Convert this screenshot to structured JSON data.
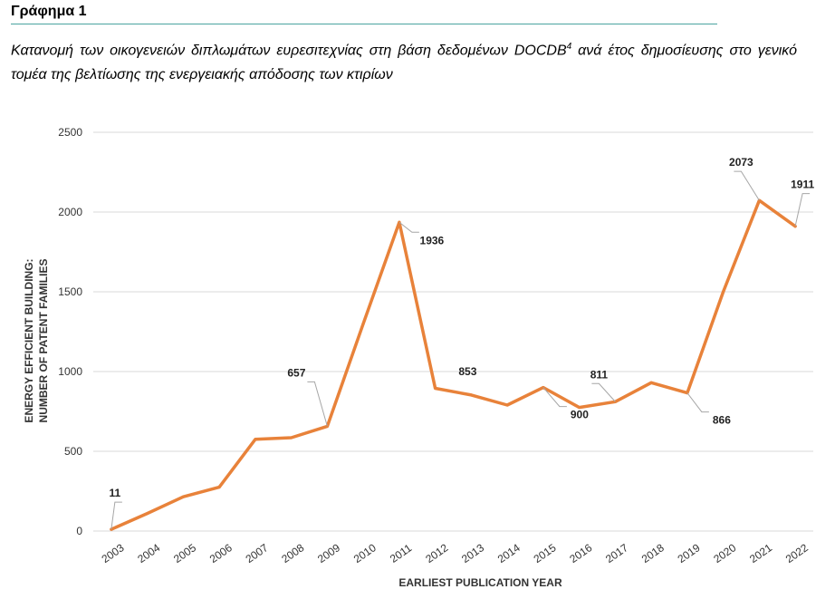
{
  "header": {
    "figure_label": "Γράφημα 1",
    "caption_main": "Κατανομή των οικογενειών διπλωμάτων ευρεσιτεχνίας στη βάση δεδομένων DOCDB",
    "caption_sup": "4",
    "caption_rest": " ανά έτος δημοσίευσης στο γενικό τομέα της βελτίωσης της ενεργειακής απόδοσης των κτιρίων"
  },
  "colors": {
    "line": "#E8823A",
    "grid": "#d9d9d9",
    "rule": "#4aa3a0",
    "leader": "#a6a6a6"
  },
  "chart_data": {
    "type": "line",
    "title": "",
    "xlabel": "EARLIEST PUBLICATION YEAR",
    "ylabel_line1": "ENERGY EFFICIENT BUILDING:",
    "ylabel_line2": "NUMBER OF PATENT FAMILIES",
    "ylim": [
      0,
      2500
    ],
    "yticks": [
      0,
      500,
      1000,
      1500,
      2000,
      2500
    ],
    "grid": true,
    "x": [
      "2003",
      "2004",
      "2005",
      "2006",
      "2007",
      "2008",
      "2009",
      "2010",
      "2011",
      "2012",
      "2013",
      "2014",
      "2015",
      "2016",
      "2017",
      "2018",
      "2019",
      "2020",
      "2021",
      "2022"
    ],
    "series": [
      {
        "values": [
          11,
          110,
          215,
          275,
          575,
          585,
          657,
          1300,
          1936,
          895,
          853,
          790,
          900,
          775,
          811,
          930,
          866,
          1500,
          2073,
          1911
        ]
      }
    ],
    "annotations": [
      {
        "index": 0,
        "text": "11"
      },
      {
        "index": 6,
        "text": "657"
      },
      {
        "index": 8,
        "text": "1936"
      },
      {
        "index": 10,
        "text": "853"
      },
      {
        "index": 12,
        "text": "900"
      },
      {
        "index": 14,
        "text": "811"
      },
      {
        "index": 16,
        "text": "866"
      },
      {
        "index": 18,
        "text": "2073"
      },
      {
        "index": 19,
        "text": "1911"
      }
    ]
  }
}
